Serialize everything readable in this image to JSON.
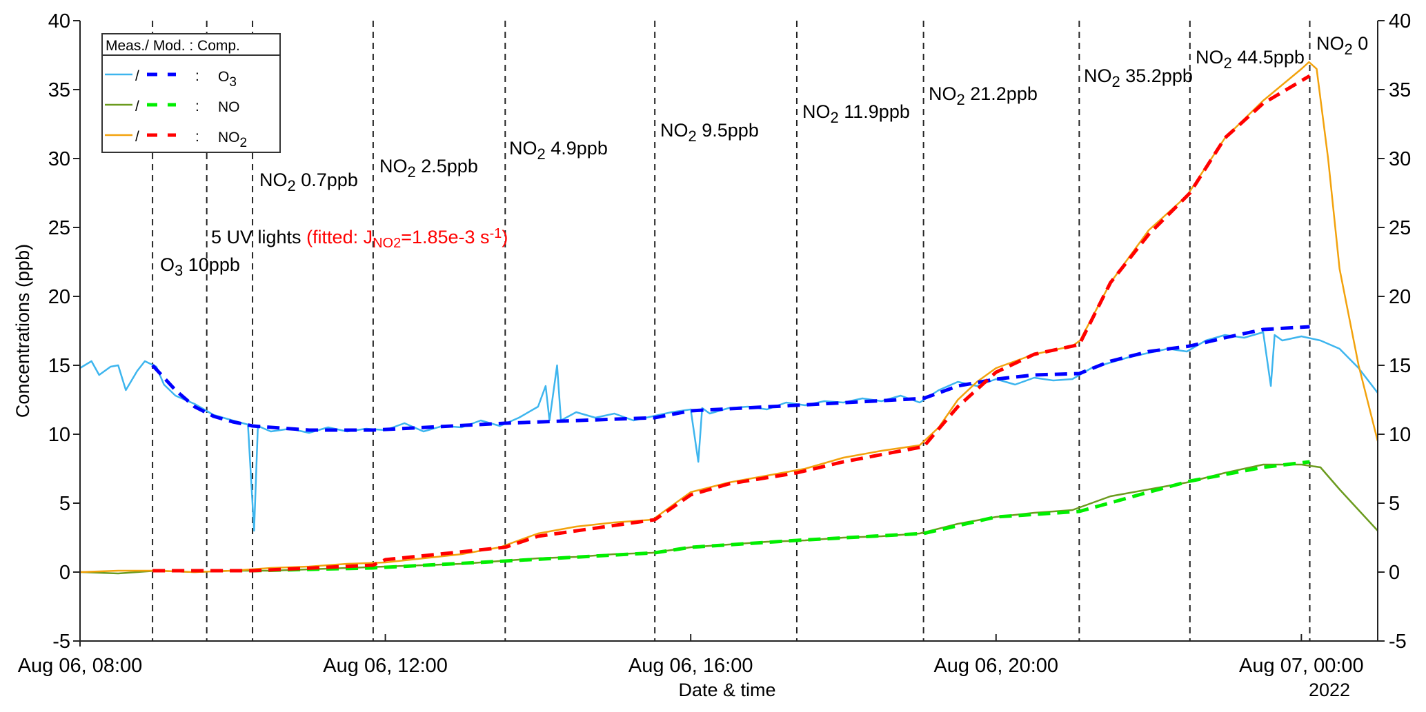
{
  "chart_data": {
    "type": "line",
    "xlabel": "Date & time",
    "ylabel": "Concentrations (ppb)",
    "year_label": "2022",
    "xlim_hours": [
      8,
      25
    ],
    "ylim": [
      -5,
      40
    ],
    "x_ticks": [
      {
        "hour": 8,
        "label": "Aug 06, 08:00"
      },
      {
        "hour": 12,
        "label": "Aug 06, 12:00"
      },
      {
        "hour": 16,
        "label": "Aug 06, 16:00"
      },
      {
        "hour": 20,
        "label": "Aug 06, 20:00"
      },
      {
        "hour": 24,
        "label": "Aug 07, 00:00"
      }
    ],
    "y_ticks": [
      -5,
      0,
      5,
      10,
      15,
      20,
      25,
      30,
      35,
      40
    ],
    "event_lines_hours": [
      8.95,
      9.66,
      10.26,
      11.84,
      13.57,
      15.53,
      17.39,
      19.05,
      21.09,
      22.54,
      24.11
    ],
    "annotations": [
      {
        "main": "O",
        "sub": "3",
        "rest": " 10ppb"
      },
      {
        "main": "5 UV lights ",
        "sub": "",
        "rest": "",
        "fit_prefix": "(fitted: J",
        "fit_sub": "NO2",
        "fit_mid": "=1.85e-3 s",
        "fit_sup": "-1",
        "fit_end": ")"
      },
      {
        "main": "NO",
        "sub": "2",
        "rest": " 0.7ppb"
      },
      {
        "main": "NO",
        "sub": "2",
        "rest": " 2.5ppb"
      },
      {
        "main": "NO",
        "sub": "2",
        "rest": " 4.9ppb"
      },
      {
        "main": "NO",
        "sub": "2",
        "rest": " 9.5ppb"
      },
      {
        "main": "NO",
        "sub": "2",
        "rest": " 11.9ppb"
      },
      {
        "main": "NO",
        "sub": "2",
        "rest": " 21.2ppb"
      },
      {
        "main": "NO",
        "sub": "2",
        "rest": " 35.2ppb"
      },
      {
        "main": "NO",
        "sub": "2",
        "rest": " 44.5ppb"
      },
      {
        "main": "NO",
        "sub": "2",
        "rest": " 0"
      }
    ],
    "legend": {
      "header": "Meas./ Mod. : Comp.",
      "separator": "/",
      "colon": ":",
      "entries": [
        {
          "main": "O",
          "sub": "3",
          "meas_color": "#3db5ee",
          "mod_color": "#0000ff"
        },
        {
          "main": "NO",
          "sub": "",
          "meas_color": "#6b9b1e",
          "mod_color": "#00ee00"
        },
        {
          "main": "NO",
          "sub": "2",
          "meas_color": "#f2a20c",
          "mod_color": "#ff0000"
        }
      ]
    },
    "series": [
      {
        "name": "O3 measured",
        "kind": "measured",
        "color": "#3db5ee",
        "points": [
          [
            8.0,
            14.8
          ],
          [
            8.15,
            15.3
          ],
          [
            8.25,
            14.3
          ],
          [
            8.4,
            14.9
          ],
          [
            8.5,
            15.0
          ],
          [
            8.6,
            13.2
          ],
          [
            8.75,
            14.6
          ],
          [
            8.85,
            15.3
          ],
          [
            9.0,
            14.9
          ],
          [
            9.1,
            13.6
          ],
          [
            9.25,
            12.8
          ],
          [
            9.5,
            12.2
          ],
          [
            9.75,
            11.4
          ],
          [
            10.0,
            11.0
          ],
          [
            10.2,
            10.7
          ],
          [
            10.28,
            3.0
          ],
          [
            10.33,
            10.6
          ],
          [
            10.5,
            10.2
          ],
          [
            10.75,
            10.4
          ],
          [
            11.0,
            10.1
          ],
          [
            11.25,
            10.5
          ],
          [
            11.5,
            10.2
          ],
          [
            11.75,
            10.4
          ],
          [
            12.0,
            10.3
          ],
          [
            12.25,
            10.8
          ],
          [
            12.5,
            10.2
          ],
          [
            12.75,
            10.6
          ],
          [
            13.0,
            10.5
          ],
          [
            13.25,
            11.0
          ],
          [
            13.5,
            10.6
          ],
          [
            13.75,
            11.2
          ],
          [
            14.0,
            12.0
          ],
          [
            14.1,
            13.5
          ],
          [
            14.15,
            11.0
          ],
          [
            14.25,
            15.0
          ],
          [
            14.3,
            11.0
          ],
          [
            14.5,
            11.6
          ],
          [
            14.75,
            11.2
          ],
          [
            15.0,
            11.5
          ],
          [
            15.25,
            11.0
          ],
          [
            15.5,
            11.3
          ],
          [
            15.75,
            11.6
          ],
          [
            16.0,
            11.8
          ],
          [
            16.1,
            8.0
          ],
          [
            16.15,
            11.9
          ],
          [
            16.25,
            11.5
          ],
          [
            16.5,
            11.9
          ],
          [
            16.75,
            12.0
          ],
          [
            17.0,
            11.8
          ],
          [
            17.25,
            12.3
          ],
          [
            17.5,
            12.1
          ],
          [
            17.75,
            12.4
          ],
          [
            18.0,
            12.3
          ],
          [
            18.25,
            12.6
          ],
          [
            18.5,
            12.4
          ],
          [
            18.75,
            12.8
          ],
          [
            19.0,
            12.3
          ],
          [
            19.25,
            13.2
          ],
          [
            19.5,
            13.8
          ],
          [
            19.75,
            13.5
          ],
          [
            20.0,
            14.0
          ],
          [
            20.25,
            13.6
          ],
          [
            20.5,
            14.1
          ],
          [
            20.75,
            13.9
          ],
          [
            21.0,
            14.0
          ],
          [
            21.25,
            14.8
          ],
          [
            21.5,
            15.2
          ],
          [
            21.75,
            15.6
          ],
          [
            22.0,
            15.9
          ],
          [
            22.25,
            16.2
          ],
          [
            22.5,
            16.0
          ],
          [
            22.75,
            16.8
          ],
          [
            23.0,
            17.2
          ],
          [
            23.25,
            17.0
          ],
          [
            23.5,
            17.4
          ],
          [
            23.6,
            13.5
          ],
          [
            23.65,
            17.2
          ],
          [
            23.75,
            16.8
          ],
          [
            24.0,
            17.1
          ],
          [
            24.25,
            16.8
          ],
          [
            24.5,
            16.2
          ],
          [
            24.75,
            14.8
          ],
          [
            25.0,
            13.0
          ]
        ]
      },
      {
        "name": "NO measured",
        "kind": "measured",
        "color": "#6b9b1e",
        "points": [
          [
            8.0,
            0.0
          ],
          [
            8.5,
            -0.1
          ],
          [
            9.0,
            0.1
          ],
          [
            9.5,
            0.0
          ],
          [
            10.0,
            0.1
          ],
          [
            10.5,
            0.1
          ],
          [
            11.0,
            0.2
          ],
          [
            11.5,
            0.3
          ],
          [
            12.0,
            0.4
          ],
          [
            12.5,
            0.5
          ],
          [
            13.0,
            0.6
          ],
          [
            13.5,
            0.8
          ],
          [
            14.0,
            1.0
          ],
          [
            14.5,
            1.1
          ],
          [
            15.0,
            1.3
          ],
          [
            15.5,
            1.4
          ],
          [
            16.0,
            1.8
          ],
          [
            16.5,
            2.0
          ],
          [
            17.0,
            2.2
          ],
          [
            17.5,
            2.3
          ],
          [
            18.0,
            2.5
          ],
          [
            18.5,
            2.6
          ],
          [
            19.0,
            2.8
          ],
          [
            19.5,
            3.5
          ],
          [
            20.0,
            4.0
          ],
          [
            20.5,
            4.3
          ],
          [
            21.0,
            4.5
          ],
          [
            21.5,
            5.5
          ],
          [
            22.0,
            6.0
          ],
          [
            22.5,
            6.5
          ],
          [
            23.0,
            7.2
          ],
          [
            23.5,
            7.8
          ],
          [
            24.0,
            7.8
          ],
          [
            24.25,
            7.6
          ],
          [
            24.5,
            6.0
          ],
          [
            24.75,
            4.5
          ],
          [
            25.0,
            3.0
          ]
        ]
      },
      {
        "name": "NO2 measured",
        "kind": "measured",
        "color": "#f2a20c",
        "points": [
          [
            8.0,
            0.0
          ],
          [
            8.5,
            0.1
          ],
          [
            9.0,
            0.1
          ],
          [
            9.5,
            0.0
          ],
          [
            10.0,
            0.1
          ],
          [
            10.5,
            0.3
          ],
          [
            11.0,
            0.4
          ],
          [
            11.5,
            0.6
          ],
          [
            12.0,
            0.7
          ],
          [
            12.5,
            1.0
          ],
          [
            13.0,
            1.3
          ],
          [
            13.5,
            1.8
          ],
          [
            14.0,
            2.8
          ],
          [
            14.5,
            3.3
          ],
          [
            15.0,
            3.6
          ],
          [
            15.5,
            3.8
          ],
          [
            15.75,
            4.8
          ],
          [
            16.0,
            5.8
          ],
          [
            16.5,
            6.5
          ],
          [
            17.0,
            7.0
          ],
          [
            17.5,
            7.5
          ],
          [
            18.0,
            8.3
          ],
          [
            18.5,
            8.8
          ],
          [
            19.0,
            9.2
          ],
          [
            19.25,
            10.5
          ],
          [
            19.5,
            12.5
          ],
          [
            19.75,
            13.8
          ],
          [
            20.0,
            14.8
          ],
          [
            20.5,
            15.8
          ],
          [
            21.0,
            16.4
          ],
          [
            21.1,
            16.8
          ],
          [
            21.5,
            21.0
          ],
          [
            22.0,
            24.8
          ],
          [
            22.5,
            27.3
          ],
          [
            23.0,
            31.5
          ],
          [
            23.5,
            34.2
          ],
          [
            24.0,
            36.5
          ],
          [
            24.1,
            37.0
          ],
          [
            24.2,
            36.5
          ],
          [
            24.35,
            30.0
          ],
          [
            24.5,
            22.0
          ],
          [
            24.75,
            15.0
          ],
          [
            25.0,
            9.5
          ]
        ]
      },
      {
        "name": "O3 model",
        "kind": "model",
        "color": "#0000ff",
        "points": [
          [
            8.95,
            15.0
          ],
          [
            9.25,
            13.2
          ],
          [
            9.5,
            12.0
          ],
          [
            9.75,
            11.3
          ],
          [
            10.0,
            10.9
          ],
          [
            10.26,
            10.6
          ],
          [
            10.75,
            10.4
          ],
          [
            11.0,
            10.3
          ],
          [
            11.84,
            10.3
          ],
          [
            13.57,
            10.8
          ],
          [
            15.53,
            11.2
          ],
          [
            16.0,
            11.7
          ],
          [
            17.39,
            12.1
          ],
          [
            19.05,
            12.6
          ],
          [
            19.5,
            13.5
          ],
          [
            20.0,
            14.0
          ],
          [
            20.5,
            14.3
          ],
          [
            21.09,
            14.4
          ],
          [
            21.5,
            15.3
          ],
          [
            22.0,
            16.0
          ],
          [
            22.54,
            16.4
          ],
          [
            23.0,
            17.0
          ],
          [
            23.5,
            17.6
          ],
          [
            24.11,
            17.8
          ]
        ]
      },
      {
        "name": "NO model",
        "kind": "model",
        "color": "#00ee00",
        "points": [
          [
            8.95,
            0.1
          ],
          [
            10.26,
            0.1
          ],
          [
            11.84,
            0.3
          ],
          [
            13.57,
            0.8
          ],
          [
            15.53,
            1.4
          ],
          [
            16.0,
            1.8
          ],
          [
            17.39,
            2.3
          ],
          [
            19.05,
            2.8
          ],
          [
            20.0,
            4.0
          ],
          [
            21.09,
            4.4
          ],
          [
            22.0,
            5.8
          ],
          [
            22.54,
            6.6
          ],
          [
            23.5,
            7.6
          ],
          [
            24.11,
            8.0
          ]
        ]
      },
      {
        "name": "NO2 model",
        "kind": "model",
        "color": "#ff0000",
        "points": [
          [
            8.95,
            0.1
          ],
          [
            10.26,
            0.1
          ],
          [
            11.84,
            0.5
          ],
          [
            12.0,
            0.9
          ],
          [
            13.57,
            1.8
          ],
          [
            14.0,
            2.6
          ],
          [
            15.53,
            3.8
          ],
          [
            16.0,
            5.6
          ],
          [
            16.5,
            6.4
          ],
          [
            17.39,
            7.2
          ],
          [
            18.0,
            8.0
          ],
          [
            19.05,
            9.1
          ],
          [
            19.5,
            12.0
          ],
          [
            20.0,
            14.5
          ],
          [
            20.5,
            15.8
          ],
          [
            21.09,
            16.5
          ],
          [
            21.5,
            21.0
          ],
          [
            22.0,
            24.5
          ],
          [
            22.54,
            27.5
          ],
          [
            23.0,
            31.5
          ],
          [
            23.5,
            34.0
          ],
          [
            24.11,
            36.0
          ]
        ]
      }
    ]
  }
}
